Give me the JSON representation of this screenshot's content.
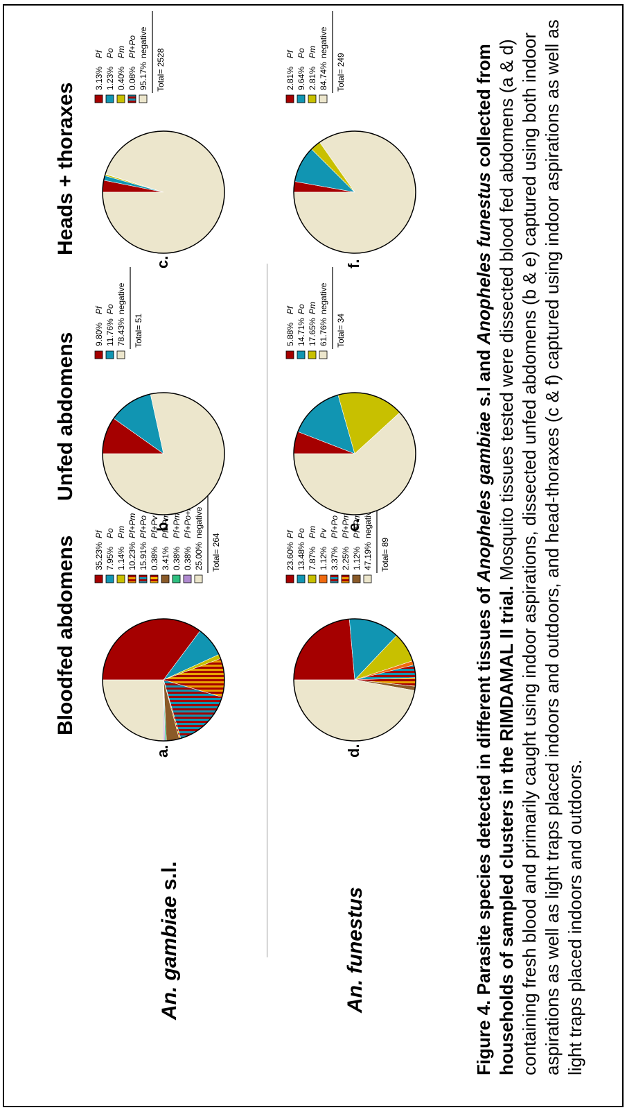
{
  "rows": [
    {
      "name_italic": "An. gambiae",
      "name_rest": " s.l."
    },
    {
      "name_italic": "An. funestus",
      "name_rest": ""
    }
  ],
  "columns": [
    "Bloodfed abdomens",
    "Unfed abdomens",
    "Heads + thoraxes"
  ],
  "caption": {
    "fig": "Figure 4.",
    "t1": " Parasite species detected in different tissues of ",
    "sp1": "Anopheles gambiae",
    "t2": " s.l and ",
    "sp2": "Anopheles funestus",
    "t3": " collected from households of sampled clusters in the RIMDAMAL II trial.",
    "body": " Mosquito tissues tested were dissected blood fed abdomens (a & d) containing fresh blood and primarily caught using indoor aspirations, dissected unfed abdomens (b & e) captured using both indoor aspirations as well as light traps placed indoors and outdoors, and head-thoraxes (c & f) captured using indoor aspirations as well as light traps placed indoors and outdoors."
  },
  "colors": {
    "Pf": "#a50000",
    "Po": "#1195b2",
    "Pm": "#c8c000",
    "Pv": "#f06a10",
    "Pf+Pm": "#a50000|#e8a000",
    "Pf+Po": "#a50000|#1195b2",
    "Pf+Pv": "#a50000|#f8c000",
    "Pf+Pm+Po": "#8a5a28",
    "Pf+Pm+Pv": "#2fbf80",
    "Pf+Po+Pv": "#b08ad0",
    "negative": "#ece6cc"
  },
  "chart_data": [
    {
      "type": "pie",
      "panel": "a.",
      "total": "Total= 264",
      "slices": [
        {
          "pct": "35.23%",
          "label": "Pf",
          "value": 35.23
        },
        {
          "pct": "7.95%",
          "label": "Po",
          "value": 7.95
        },
        {
          "pct": "1.14%",
          "label": "Pm",
          "value": 1.14
        },
        {
          "pct": "10.23%",
          "label": "Pf+Pm",
          "value": 10.23
        },
        {
          "pct": "15.91%",
          "label": "Pf+Po",
          "value": 15.91
        },
        {
          "pct": "0.38%",
          "label": "Pf+Pv",
          "value": 0.38
        },
        {
          "pct": "3.41%",
          "label": "Pf+Pm+Po",
          "value": 3.41
        },
        {
          "pct": "0.38%",
          "label": "Pf+Pm+Pv",
          "value": 0.38
        },
        {
          "pct": "0.38%",
          "label": "Pf+Po+Pv",
          "value": 0.38
        },
        {
          "pct": "25.00%",
          "label": "negative",
          "value": 25.0
        }
      ]
    },
    {
      "type": "pie",
      "panel": "b.",
      "total": "Total= 51",
      "slices": [
        {
          "pct": "9.80%",
          "label": "Pf",
          "value": 9.8
        },
        {
          "pct": "11.76%",
          "label": "Po",
          "value": 11.76
        },
        {
          "pct": "78.43%",
          "label": "negative",
          "value": 78.43
        }
      ]
    },
    {
      "type": "pie",
      "panel": "c.",
      "total": "Total= 2528",
      "slices": [
        {
          "pct": "3.13%",
          "label": "Pf",
          "value": 3.13
        },
        {
          "pct": "1.23%",
          "label": "Po",
          "value": 1.23
        },
        {
          "pct": "0.40%",
          "label": "Pm",
          "value": 0.4
        },
        {
          "pct": "0.08%",
          "label": "Pf+Po",
          "value": 0.08
        },
        {
          "pct": "95.17%",
          "label": "negative",
          "value": 95.17
        }
      ]
    },
    {
      "type": "pie",
      "panel": "d.",
      "total": "Total= 89",
      "slices": [
        {
          "pct": "23.60%",
          "label": "Pf",
          "value": 23.6
        },
        {
          "pct": "13.48%",
          "label": "Po",
          "value": 13.48
        },
        {
          "pct": "7.87%",
          "label": "Pm",
          "value": 7.87
        },
        {
          "pct": "1.12%",
          "label": "Pv",
          "value": 1.12
        },
        {
          "pct": "3.37%",
          "label": "Pf+Po",
          "value": 3.37
        },
        {
          "pct": "2.25%",
          "label": "Pf+Pm",
          "value": 2.25
        },
        {
          "pct": "1.12%",
          "label": "Pf+Pm+Po",
          "value": 1.12
        },
        {
          "pct": "47.19%",
          "label": "negative",
          "value": 47.19
        }
      ]
    },
    {
      "type": "pie",
      "panel": "e.",
      "total": "Total= 34",
      "slices": [
        {
          "pct": "5.88%",
          "label": "Pf",
          "value": 5.88
        },
        {
          "pct": "14.71%",
          "label": "Po",
          "value": 14.71
        },
        {
          "pct": "17.65%",
          "label": "Pm",
          "value": 17.65
        },
        {
          "pct": "61.76%",
          "label": "negative",
          "value": 61.76
        }
      ]
    },
    {
      "type": "pie",
      "panel": "f.",
      "total": "Total= 249",
      "slices": [
        {
          "pct": "2.81%",
          "label": "Pf",
          "value": 2.81
        },
        {
          "pct": "9.64%",
          "label": "Po",
          "value": 9.64
        },
        {
          "pct": "2.81%",
          "label": "Pm",
          "value": 2.81
        },
        {
          "pct": "84.74%",
          "label": "negative",
          "value": 84.74
        }
      ]
    }
  ]
}
